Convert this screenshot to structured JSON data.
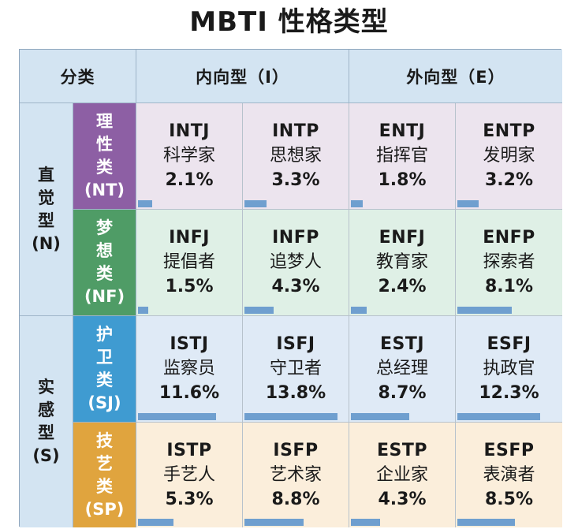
{
  "title": "MBTI 性格类型",
  "header": {
    "corner": "分类",
    "introvert": "内向型（I）",
    "extrovert": "外向型（E）"
  },
  "row_groups": [
    {
      "chars": [
        "直",
        "觉",
        "型",
        "(N)"
      ]
    },
    {
      "chars": [
        "实",
        "感",
        "型",
        "(S)"
      ]
    }
  ],
  "categories": [
    {
      "chars": [
        "理",
        "性",
        "类",
        "(NT)"
      ],
      "color": "#8d5fa4"
    },
    {
      "chars": [
        "梦",
        "想",
        "类",
        "(NF)"
      ],
      "color": "#4f9c66"
    },
    {
      "chars": [
        "护",
        "卫",
        "类",
        "(SJ)"
      ],
      "color": "#3f9bd1"
    },
    {
      "chars": [
        "技",
        "艺",
        "类",
        "(SP)"
      ],
      "color": "#e0a43e"
    }
  ],
  "rows": [
    [
      {
        "code": "INTJ",
        "name": "科学家",
        "pct_label": "2.1%",
        "pct": 2.1
      },
      {
        "code": "INTP",
        "name": "思想家",
        "pct_label": "3.3%",
        "pct": 3.3
      },
      {
        "code": "ENTJ",
        "name": "指挥官",
        "pct_label": "1.8%",
        "pct": 1.8
      },
      {
        "code": "ENTP",
        "name": "发明家",
        "pct_label": "3.2%",
        "pct": 3.2
      }
    ],
    [
      {
        "code": "INFJ",
        "name": "提倡者",
        "pct_label": "1.5%",
        "pct": 1.5
      },
      {
        "code": "INFP",
        "name": "追梦人",
        "pct_label": "4.3%",
        "pct": 4.3
      },
      {
        "code": "ENFJ",
        "name": "教育家",
        "pct_label": "2.4%",
        "pct": 2.4
      },
      {
        "code": "ENFP",
        "name": "探索者",
        "pct_label": "8.1%",
        "pct": 8.1
      }
    ],
    [
      {
        "code": "ISTJ",
        "name": "监察员",
        "pct_label": "11.6%",
        "pct": 11.6
      },
      {
        "code": "ISFJ",
        "name": "守卫者",
        "pct_label": "13.8%",
        "pct": 13.8
      },
      {
        "code": "ESTJ",
        "name": "总经理",
        "pct_label": "8.7%",
        "pct": 8.7
      },
      {
        "code": "ESFJ",
        "name": "执政官",
        "pct_label": "12.3%",
        "pct": 12.3
      }
    ],
    [
      {
        "code": "ISTP",
        "name": "手艺人",
        "pct_label": "5.3%",
        "pct": 5.3
      },
      {
        "code": "ISFP",
        "name": "艺术家",
        "pct_label": "8.8%",
        "pct": 8.8
      },
      {
        "code": "ESTP",
        "name": "企业家",
        "pct_label": "4.3%",
        "pct": 4.3
      },
      {
        "code": "ESFP",
        "name": "表演者",
        "pct_label": "8.5%",
        "pct": 8.5
      }
    ]
  ],
  "bar_color": "#6f9fcf"
}
